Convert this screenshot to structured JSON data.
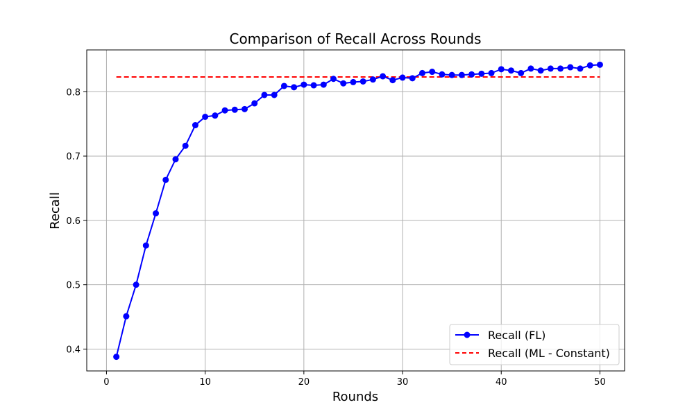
{
  "chart_data": {
    "type": "line",
    "title": "Comparison of Recall Across Rounds",
    "xlabel": "Rounds",
    "ylabel": "Recall",
    "xlim": [
      -2,
      52.5
    ],
    "ylim": [
      0.366,
      0.865
    ],
    "xticks": [
      0,
      10,
      20,
      30,
      40,
      50
    ],
    "yticks": [
      0.4,
      0.5,
      0.6,
      0.7,
      0.8
    ],
    "grid": true,
    "legend_position": "lower-right",
    "x": [
      1,
      2,
      3,
      4,
      5,
      6,
      7,
      8,
      9,
      10,
      11,
      12,
      13,
      14,
      15,
      16,
      17,
      18,
      19,
      20,
      21,
      22,
      23,
      24,
      25,
      26,
      27,
      28,
      29,
      30,
      31,
      32,
      33,
      34,
      35,
      36,
      37,
      38,
      39,
      40,
      41,
      42,
      43,
      44,
      45,
      46,
      47,
      48,
      49,
      50
    ],
    "series": [
      {
        "name": "Recall (FL)",
        "color": "#0000ff",
        "style": "solid-marker",
        "values": [
          0.388,
          0.451,
          0.5,
          0.561,
          0.611,
          0.663,
          0.695,
          0.716,
          0.748,
          0.761,
          0.763,
          0.771,
          0.772,
          0.773,
          0.782,
          0.795,
          0.795,
          0.809,
          0.807,
          0.811,
          0.81,
          0.811,
          0.82,
          0.813,
          0.815,
          0.816,
          0.819,
          0.824,
          0.818,
          0.822,
          0.821,
          0.829,
          0.831,
          0.827,
          0.826,
          0.826,
          0.827,
          0.828,
          0.829,
          0.835,
          0.833,
          0.829,
          0.836,
          0.833,
          0.836,
          0.836,
          0.838,
          0.836,
          0.841,
          0.842
        ]
      },
      {
        "name": "Recall (ML - Constant)",
        "color": "#ff0000",
        "style": "dashed",
        "x_range": [
          1,
          50
        ],
        "constant": 0.823
      }
    ]
  }
}
